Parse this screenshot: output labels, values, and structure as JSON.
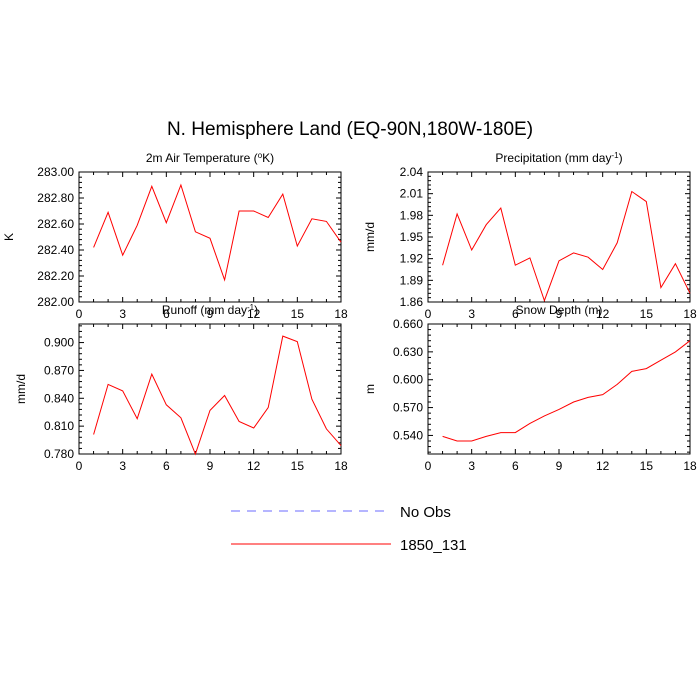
{
  "main_title": "N. Hemisphere Land (EQ-90N,180W-180E)",
  "legend": [
    {
      "label": "No Obs",
      "color": "#6b6bff",
      "style": "dashed"
    },
    {
      "label": "1850_131",
      "color": "#ff0000",
      "style": "solid"
    }
  ],
  "chart_data": [
    {
      "type": "line",
      "title_main": "2m Air Temperature (",
      "title_sup": "o",
      "title_tail": "K)",
      "xlabel": "",
      "ylabel": "K",
      "xlim": [
        0,
        18
      ],
      "ylim": [
        282.0,
        283.0
      ],
      "xticks": [
        0,
        3,
        6,
        9,
        12,
        15,
        18
      ],
      "yticks": [
        282.0,
        282.2,
        282.4,
        282.6,
        282.8,
        283.0
      ],
      "ytick_labels": [
        "282.00",
        "282.20",
        "282.40",
        "282.60",
        "282.80",
        "283.00"
      ],
      "series": [
        {
          "name": "1850_131",
          "x": [
            1,
            2,
            3,
            4,
            5,
            6,
            7,
            8,
            9,
            10,
            11,
            12,
            13,
            14,
            15,
            16,
            17,
            18
          ],
          "values": [
            282.42,
            282.69,
            282.36,
            282.59,
            282.89,
            282.61,
            282.9,
            282.54,
            282.49,
            282.17,
            282.7,
            282.7,
            282.65,
            282.83,
            282.43,
            282.64,
            282.62,
            282.46
          ]
        }
      ]
    },
    {
      "type": "line",
      "title_main": "Precipitation (mm day",
      "title_sup": "-1",
      "title_tail": ")",
      "xlabel": "",
      "ylabel": "mm/d",
      "xlim": [
        0,
        18
      ],
      "ylim": [
        1.86,
        2.04
      ],
      "xticks": [
        0,
        3,
        6,
        9,
        12,
        15,
        18
      ],
      "yticks": [
        1.86,
        1.89,
        1.92,
        1.95,
        1.98,
        2.01,
        2.04
      ],
      "ytick_labels": [
        "1.86",
        "1.89",
        "1.92",
        "1.95",
        "1.98",
        "2.01",
        "2.04"
      ],
      "series": [
        {
          "name": "1850_131",
          "x": [
            1,
            2,
            3,
            4,
            5,
            6,
            7,
            8,
            9,
            10,
            11,
            12,
            13,
            14,
            15,
            16,
            17,
            18
          ],
          "values": [
            1.911,
            1.982,
            1.932,
            1.967,
            1.99,
            1.911,
            1.921,
            1.862,
            1.917,
            1.928,
            1.922,
            1.905,
            1.942,
            2.013,
            1.999,
            1.88,
            1.913,
            1.872
          ]
        }
      ]
    },
    {
      "type": "line",
      "title_main": "Runoff (mm day",
      "title_sup": "-1",
      "title_tail": ")",
      "xlabel": "",
      "ylabel": "mm/d",
      "xlim": [
        0,
        18
      ],
      "ylim": [
        0.78,
        0.92
      ],
      "xticks": [
        0,
        3,
        6,
        9,
        12,
        15,
        18
      ],
      "yticks": [
        0.78,
        0.81,
        0.84,
        0.87,
        0.9
      ],
      "ytick_labels": [
        "0.780",
        "0.810",
        "0.840",
        "0.870",
        "0.900"
      ],
      "series": [
        {
          "name": "1850_131",
          "x": [
            1,
            2,
            3,
            4,
            5,
            6,
            7,
            8,
            9,
            10,
            11,
            12,
            13,
            14,
            15,
            16,
            17,
            18
          ],
          "values": [
            0.801,
            0.855,
            0.848,
            0.818,
            0.866,
            0.833,
            0.819,
            0.78,
            0.827,
            0.843,
            0.815,
            0.808,
            0.83,
            0.907,
            0.901,
            0.839,
            0.807,
            0.789
          ]
        }
      ]
    },
    {
      "type": "line",
      "title_main": "Snow Depth (m)",
      "title_sup": "",
      "title_tail": "",
      "xlabel": "",
      "ylabel": "m",
      "xlim": [
        0,
        18
      ],
      "ylim": [
        0.52,
        0.66
      ],
      "xticks": [
        0,
        3,
        6,
        9,
        12,
        15,
        18
      ],
      "yticks": [
        0.54,
        0.57,
        0.6,
        0.63,
        0.66
      ],
      "ytick_labels": [
        "0.540",
        "0.570",
        "0.600",
        "0.630",
        "0.660"
      ],
      "series": [
        {
          "name": "1850_131",
          "x": [
            1,
            2,
            3,
            4,
            5,
            6,
            7,
            8,
            9,
            10,
            11,
            12,
            13,
            14,
            15,
            16,
            17,
            18
          ],
          "values": [
            0.539,
            0.534,
            0.534,
            0.539,
            0.543,
            0.543,
            0.553,
            0.561,
            0.568,
            0.576,
            0.581,
            0.584,
            0.595,
            0.609,
            0.612,
            0.621,
            0.63,
            0.642
          ]
        }
      ]
    }
  ]
}
